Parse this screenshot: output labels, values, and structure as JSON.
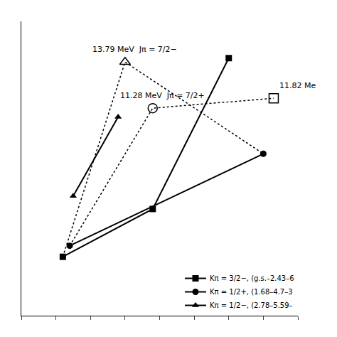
{
  "chart_data": {
    "type": "line",
    "xlim": [
      0,
      8
    ],
    "xticks": [
      0,
      1,
      2,
      3,
      4,
      5,
      6,
      7,
      8
    ],
    "ylim": [
      0,
      16
    ],
    "yticks": [],
    "tick_labels": false,
    "grid": false,
    "legend": "lower right",
    "series": [
      {
        "x": [
          1.2,
          3.0,
          7.0
        ],
        "values": [
          3.2,
          13.79,
          8.8
        ],
        "color": "#000000",
        "line_style": "dotted"
      },
      {
        "x": [
          1.4,
          3.8,
          7.3
        ],
        "values": [
          3.8,
          11.28,
          11.82
        ],
        "color": "#000000",
        "line_style": "dotted"
      },
      {
        "name": "Kπ = 3/2−, (g.s.–2.43–6",
        "x": [
          1.2,
          3.8,
          6.0
        ],
        "values": [
          3.2,
          5.8,
          14.0
        ],
        "color": "#000000",
        "marker": "square",
        "line_style": "solid"
      },
      {
        "name": "Kπ = 1/2+, (1.68–4.7–3",
        "x": [
          1.4,
          7.0
        ],
        "values": [
          3.8,
          8.8
        ],
        "color": "#000000",
        "marker": "circle",
        "line_style": "solid"
      },
      {
        "name": "Kπ = 1/2−, (2.78–5.59–",
        "x": [
          1.5,
          2.8
        ],
        "values": [
          6.5,
          10.8
        ],
        "color": "#000000",
        "marker": "triangle-up",
        "line_style": "solid"
      },
      {
        "type": "scatter",
        "x": [
          3.0
        ],
        "values": [
          13.79
        ],
        "color": "#000000",
        "marker": "triangle-up-open"
      },
      {
        "type": "scatter",
        "x": [
          3.8
        ],
        "values": [
          11.28
        ],
        "color": "#000000",
        "marker": "circle-open"
      },
      {
        "type": "scatter",
        "x": [
          7.3
        ],
        "values": [
          11.82
        ],
        "color": "#000000",
        "marker": "square-open"
      }
    ],
    "annotations": [
      {
        "text": "13.79 MeV  Jπ = 7/2−",
        "x": 3.0,
        "y": 13.79
      },
      {
        "text": "11.28 MeV  Jπ = 7/2+",
        "x": 3.8,
        "y": 11.28
      },
      {
        "text": "11.82 Me",
        "x": 7.3,
        "y": 11.82,
        "align": "left"
      }
    ]
  }
}
